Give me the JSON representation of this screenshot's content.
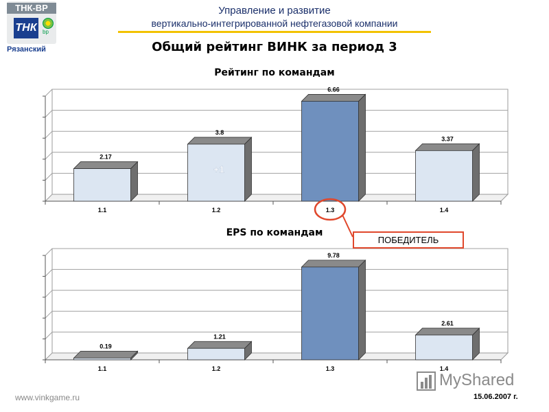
{
  "logo": {
    "brand": "ТНК-ВР",
    "tile": "ТНК",
    "bp_mark": "bp",
    "region": "Рязанский"
  },
  "header": {
    "line1": "Управление и развитие",
    "line2": "вертикально-интегрированной нефтегазовой компании"
  },
  "page_title": "Общий рейтинг ВИНК за период 3",
  "callout": {
    "text": "ПОБЕДИТЕЛЬ",
    "target_category": "1.3"
  },
  "footer": {
    "url": "www.vinkgame.ru",
    "date": "15.06.2007 г."
  },
  "watermark": {
    "text": "MyShared"
  },
  "colors": {
    "bar_light": "#dce6f2",
    "bar_highlight": "#6f90be",
    "bar_side": "#6e6e6e",
    "bar_top": "#8a8a8a",
    "callout_border": "#e0472b",
    "header_underline": "#f2c200"
  },
  "chart_data": [
    {
      "type": "bar",
      "title": "Рейтинг по командам",
      "categories": [
        "1.1",
        "1.2",
        "1.3",
        "1.4"
      ],
      "values": [
        2.17,
        3.8,
        6.66,
        3.37
      ],
      "value_labels": [
        "2.17",
        "3.8",
        "6.66",
        "3.37"
      ],
      "highlight_index": 2,
      "annotations": [
        {
          "category": "1.2",
          "text": "+1"
        }
      ],
      "ylim": [
        0,
        7
      ],
      "grid": true,
      "xlabel": "",
      "ylabel": ""
    },
    {
      "type": "bar",
      "title": "EPS по командам",
      "categories": [
        "1.1",
        "1.2",
        "1.3",
        "1.4"
      ],
      "values": [
        0.19,
        1.21,
        9.78,
        2.61
      ],
      "value_labels": [
        "0.19",
        "1.21",
        "9.78",
        "2.61"
      ],
      "highlight_index": 2,
      "annotations": [],
      "ylim": [
        0,
        11
      ],
      "grid": true,
      "xlabel": "",
      "ylabel": ""
    }
  ]
}
